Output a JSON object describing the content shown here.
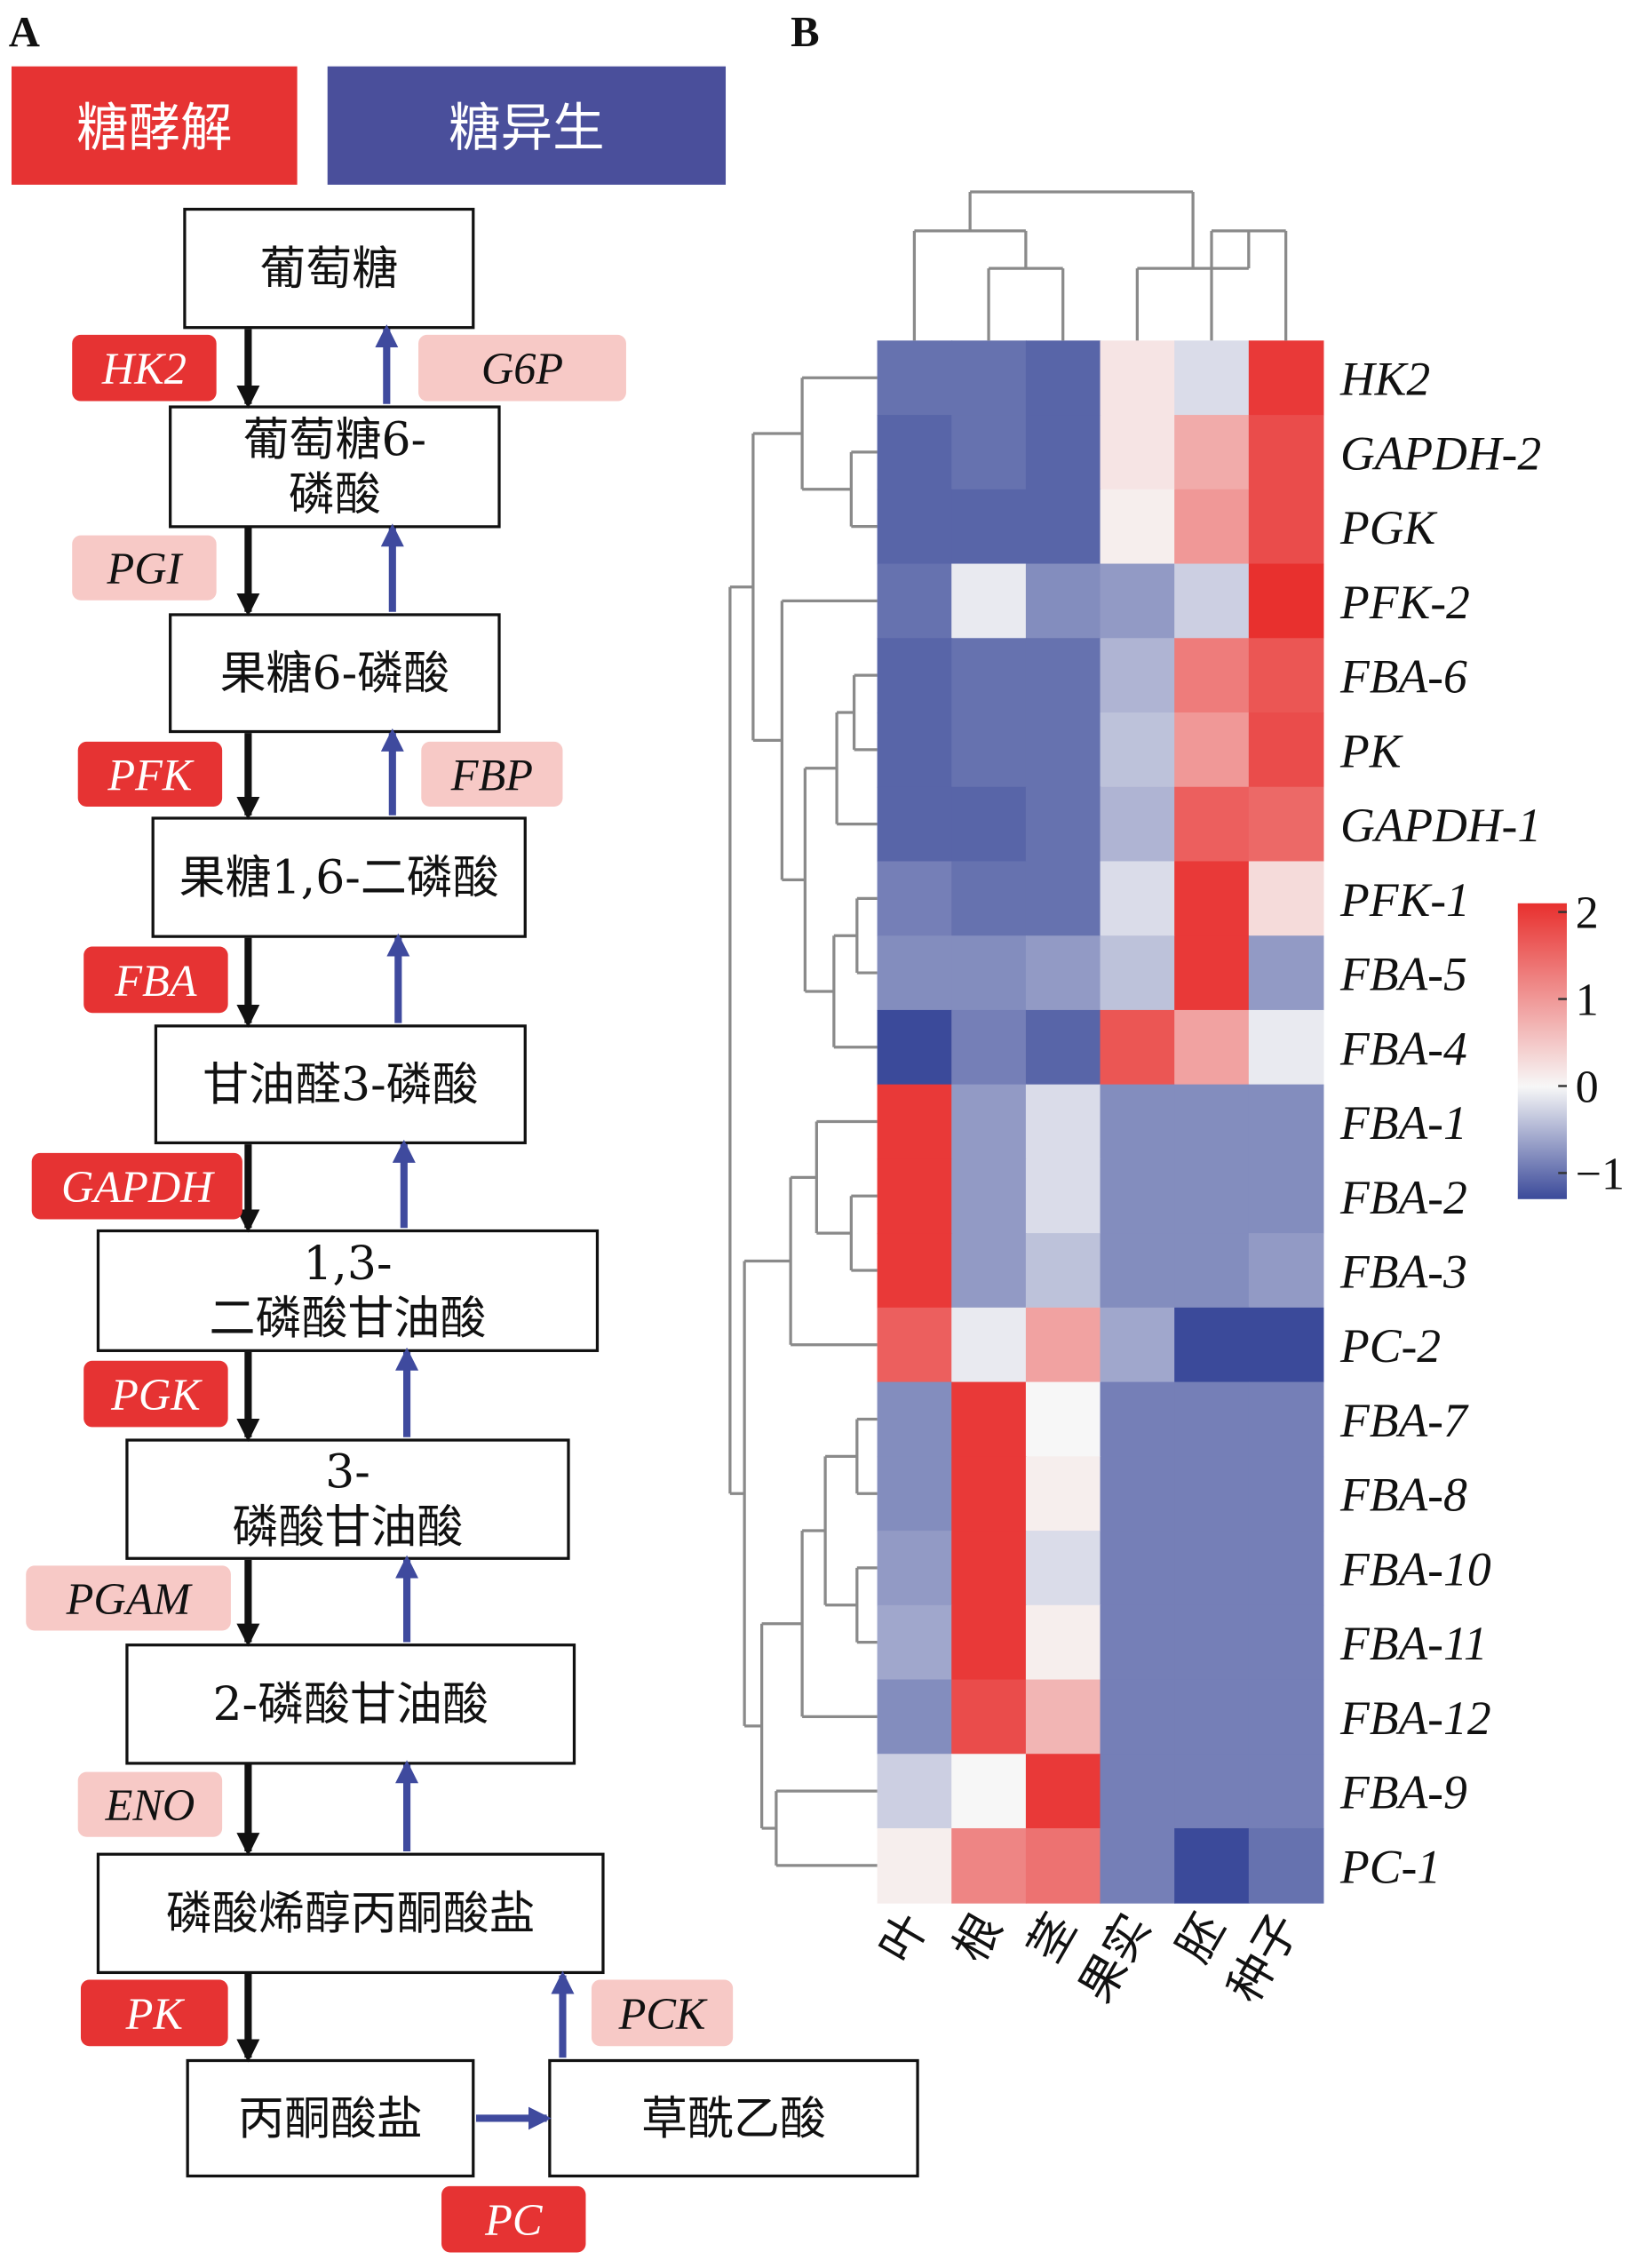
{
  "panels": {
    "a": "A",
    "b": "B"
  },
  "legend_tags": {
    "glycolysis": {
      "label": "糖酵解",
      "color": "#e63333"
    },
    "gluconeogenesis": {
      "label": "糖异生",
      "color": "#4a4f9b"
    }
  },
  "pathway": {
    "metabolites": [
      "葡萄糖",
      "葡萄糖6-磷酸",
      "果糖6-磷酸",
      "果糖1,6-二磷酸",
      "甘油醛3-磷酸",
      "1,3-二磷酸甘油酸",
      "3-磷酸甘油酸",
      "2-磷酸甘油酸",
      "磷酸烯醇丙酮酸盐",
      "丙酮酸盐",
      "草酰乙酸"
    ],
    "metabolite_lines": [
      [
        "葡萄糖"
      ],
      [
        "葡萄糖6-",
        "磷酸"
      ],
      [
        "果糖6-磷酸"
      ],
      [
        "果糖1,6-二磷酸"
      ],
      [
        "甘油醛3-磷酸"
      ],
      [
        "1,3-",
        "二磷酸甘油酸"
      ],
      [
        "3-",
        "磷酸甘油酸"
      ],
      [
        "2-磷酸甘油酸"
      ],
      [
        "磷酸烯醇丙酮酸盐"
      ],
      [
        "丙酮酸盐"
      ],
      [
        "草酰乙酸"
      ]
    ],
    "glycolysis_enzymes": [
      {
        "name": "HK2",
        "style": "dark"
      },
      {
        "name": "PGI",
        "style": "light"
      },
      {
        "name": "PFK",
        "style": "dark"
      },
      {
        "name": "FBA",
        "style": "dark"
      },
      {
        "name": "GAPDH",
        "style": "dark"
      },
      {
        "name": "PGK",
        "style": "dark"
      },
      {
        "name": "PGAM",
        "style": "light"
      },
      {
        "name": "ENO",
        "style": "light"
      },
      {
        "name": "PK",
        "style": "dark"
      }
    ],
    "gluconeogenesis_enzymes": [
      {
        "name": "G6P",
        "style": "light"
      },
      {
        "name": "FBP",
        "style": "light"
      },
      {
        "name": "PCK",
        "style": "light"
      },
      {
        "name": "PC",
        "style": "dark"
      }
    ],
    "colors": {
      "dark_tag": "#e63333",
      "light_tag": "#f7c9c6",
      "down_arrow": "#111111",
      "up_arrow": "#3f4a9e"
    }
  },
  "chart_data": {
    "type": "heatmap",
    "columns": [
      "叶",
      "根",
      "茎",
      "果实",
      "胚",
      "种子"
    ],
    "rows": [
      "HK2",
      "GAPDH-2",
      "PGK",
      "PFK-2",
      "FBA-6",
      "PK",
      "GAPDH-1",
      "PFK-1",
      "FBA-5",
      "FBA-4",
      "FBA-1",
      "FBA-2",
      "FBA-3",
      "PC-2",
      "FBA-7",
      "FBA-8",
      "FBA-10",
      "FBA-11",
      "FBA-12",
      "FBA-9",
      "PC-1"
    ],
    "values": [
      [
        -1.0,
        -1.0,
        -1.1,
        0.2,
        -0.2,
        2.0
      ],
      [
        -1.1,
        -1.0,
        -1.1,
        0.2,
        0.8,
        1.8
      ],
      [
        -1.1,
        -1.1,
        -1.1,
        0.1,
        1.0,
        1.8
      ],
      [
        -1.0,
        -0.1,
        -0.8,
        -0.7,
        -0.3,
        2.1
      ],
      [
        -1.1,
        -1.0,
        -1.0,
        -0.5,
        1.3,
        1.7
      ],
      [
        -1.1,
        -1.0,
        -1.0,
        -0.4,
        1.0,
        1.8
      ],
      [
        -1.1,
        -1.1,
        -1.0,
        -0.5,
        1.6,
        1.5
      ],
      [
        -0.9,
        -1.0,
        -1.0,
        -0.2,
        2.0,
        0.3
      ],
      [
        -0.8,
        -0.8,
        -0.7,
        -0.4,
        2.0,
        -0.7
      ],
      [
        -1.3,
        -0.9,
        -1.1,
        1.7,
        0.9,
        -0.1
      ],
      [
        2.0,
        -0.7,
        -0.2,
        -0.8,
        -0.8,
        -0.8
      ],
      [
        2.0,
        -0.7,
        -0.2,
        -0.8,
        -0.8,
        -0.8
      ],
      [
        2.0,
        -0.7,
        -0.4,
        -0.8,
        -0.8,
        -0.7
      ],
      [
        1.6,
        -0.1,
        0.9,
        -0.6,
        -1.3,
        -1.3
      ],
      [
        -0.8,
        2.0,
        0.0,
        -0.9,
        -0.9,
        -0.9
      ],
      [
        -0.8,
        2.0,
        0.1,
        -0.9,
        -0.9,
        -0.9
      ],
      [
        -0.7,
        2.0,
        -0.2,
        -0.9,
        -0.9,
        -0.9
      ],
      [
        -0.6,
        2.0,
        0.1,
        -0.9,
        -0.9,
        -0.9
      ],
      [
        -0.8,
        1.8,
        0.7,
        -0.9,
        -0.9,
        -0.9
      ],
      [
        -0.3,
        0.0,
        2.0,
        -0.9,
        -0.9,
        -0.9
      ],
      [
        0.1,
        1.2,
        1.4,
        -0.9,
        -1.3,
        -1.0
      ]
    ],
    "colorbar": {
      "ticks": [
        2,
        1,
        0,
        -1
      ],
      "tick_labels": [
        "2",
        "1",
        "0",
        "−1"
      ],
      "range": [
        -1.3,
        2.1
      ],
      "low_color": "#3b4a9a",
      "mid_color": "#f7f7f7",
      "high_color": "#e8302e"
    },
    "row_dendrogram": true,
    "column_dendrogram": true
  }
}
